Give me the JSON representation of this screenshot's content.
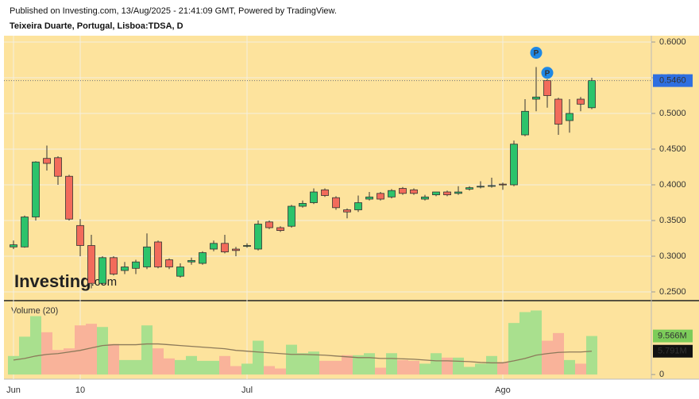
{
  "header": {
    "published": "Published on Investing.com, 13/Aug/2025 - 21:41:09 GMT, Powered by TradingView."
  },
  "chart_data": [
    {
      "type": "candlestick",
      "title": "Teixeira Duarte, Portugal, Lisboa:TDSA, D",
      "categories": [
        "Jun",
        null,
        null,
        null,
        null,
        null,
        "10",
        null,
        null,
        null,
        null,
        null,
        null,
        null,
        null,
        null,
        null,
        null,
        null,
        null,
        null,
        "Jul",
        null,
        null,
        null,
        null,
        null,
        null,
        null,
        null,
        null,
        null,
        null,
        null,
        null,
        null,
        null,
        null,
        null,
        null,
        null,
        null,
        null,
        null,
        "Ago",
        null,
        null,
        null,
        null,
        null,
        null,
        null,
        null
      ],
      "open": [
        0.313,
        0.313,
        0.355,
        0.437,
        0.438,
        0.412,
        0.343,
        0.315,
        0.262,
        0.298,
        0.28,
        0.283,
        0.285,
        0.32,
        0.295,
        0.272,
        0.292,
        0.29,
        0.31,
        0.318,
        0.31,
        0.314,
        0.31,
        0.348,
        0.34,
        0.342,
        0.37,
        0.375,
        0.393,
        0.382,
        0.365,
        0.365,
        0.38,
        0.388,
        0.383,
        0.395,
        0.393,
        0.38,
        0.386,
        0.39,
        0.388,
        0.394,
        0.397,
        0.398,
        0.401,
        0.4,
        0.47,
        0.52,
        0.546,
        0.52,
        0.49,
        0.52,
        0.508
      ],
      "high": [
        0.322,
        0.357,
        0.433,
        0.455,
        0.44,
        0.414,
        0.352,
        0.33,
        0.3,
        0.3,
        0.292,
        0.295,
        0.332,
        0.322,
        0.297,
        0.29,
        0.298,
        0.307,
        0.322,
        0.33,
        0.313,
        0.318,
        0.35,
        0.35,
        0.342,
        0.372,
        0.378,
        0.395,
        0.395,
        0.384,
        0.367,
        0.385,
        0.39,
        0.39,
        0.394,
        0.397,
        0.395,
        0.386,
        0.39,
        0.392,
        0.398,
        0.398,
        0.405,
        0.41,
        0.403,
        0.462,
        0.52,
        0.565,
        0.548,
        0.522,
        0.52,
        0.523,
        0.55
      ],
      "low": [
        0.31,
        0.312,
        0.35,
        0.42,
        0.4,
        0.35,
        0.3,
        0.255,
        0.26,
        0.273,
        0.275,
        0.275,
        0.282,
        0.283,
        0.282,
        0.27,
        0.288,
        0.288,
        0.307,
        0.304,
        0.3,
        0.312,
        0.308,
        0.338,
        0.334,
        0.34,
        0.368,
        0.373,
        0.383,
        0.365,
        0.353,
        0.362,
        0.378,
        0.378,
        0.381,
        0.386,
        0.386,
        0.378,
        0.384,
        0.384,
        0.386,
        0.392,
        0.395,
        0.396,
        0.393,
        0.398,
        0.468,
        0.503,
        0.508,
        0.47,
        0.473,
        0.503,
        0.506
      ],
      "close": [
        0.316,
        0.355,
        0.432,
        0.43,
        0.412,
        0.352,
        0.315,
        0.262,
        0.298,
        0.275,
        0.285,
        0.292,
        0.313,
        0.285,
        0.285,
        0.285,
        0.294,
        0.305,
        0.318,
        0.306,
        0.308,
        0.315,
        0.345,
        0.34,
        0.336,
        0.37,
        0.374,
        0.39,
        0.385,
        0.368,
        0.362,
        0.375,
        0.383,
        0.38,
        0.392,
        0.388,
        0.388,
        0.383,
        0.39,
        0.386,
        0.39,
        0.396,
        0.398,
        0.399,
        0.4,
        0.457,
        0.503,
        0.523,
        0.525,
        0.485,
        0.5,
        0.513,
        0.546
      ],
      "up_color": "#2cc36b",
      "down_color": "#f26b5b",
      "ylim": [
        0.2389,
        0.6089
      ],
      "yticks": [
        {
          "value": 0.25,
          "label": "0.2500"
        },
        {
          "value": 0.3,
          "label": "0.3000"
        },
        {
          "value": 0.35,
          "label": "0.3500"
        },
        {
          "value": 0.4,
          "label": "0.4000"
        },
        {
          "value": 0.45,
          "label": "0.4500"
        },
        {
          "value": 0.5,
          "label": "0.5000"
        },
        {
          "value": 0.55,
          "label": "0.5500"
        },
        {
          "value": 0.6,
          "label": "0.6000"
        }
      ],
      "grid": true,
      "last_price": {
        "value": 0.546,
        "label": "0.5460"
      },
      "event_markers": [
        "P",
        "P"
      ],
      "watermark": {
        "main": "Investing",
        "suffix": ".com"
      }
    },
    {
      "type": "bar",
      "title": "Volume (20)",
      "values": [
        4.6,
        9.4,
        14.5,
        10.5,
        6.1,
        6.5,
        12.2,
        12.6,
        11.8,
        7.6,
        3.6,
        3.6,
        12.2,
        6.5,
        4.0,
        3.6,
        4.6,
        3.4,
        3.4,
        4.6,
        2.1,
        2.7,
        8.4,
        2.1,
        1.5,
        7.4,
        5.3,
        5.7,
        3.4,
        3.4,
        4.8,
        4.8,
        5.3,
        1.7,
        5.3,
        3.6,
        3.4,
        2.7,
        5.3,
        4.2,
        4.2,
        1.9,
        2.7,
        4.6,
        3.1,
        12.8,
        15.5,
        15.9,
        8.4,
        10.3,
        3.6,
        2.7,
        9.566
      ],
      "ma": [
        3.6,
        4.0,
        4.6,
        5.0,
        5.2,
        5.6,
        6.0,
        6.6,
        7.2,
        7.4,
        7.4,
        7.4,
        7.6,
        7.6,
        7.4,
        7.2,
        7.0,
        6.8,
        6.6,
        6.4,
        6.0,
        5.8,
        5.6,
        5.4,
        5.2,
        5.0,
        5.0,
        4.9,
        4.8,
        4.6,
        4.4,
        4.2,
        4.2,
        4.0,
        4.0,
        3.9,
        3.8,
        3.6,
        3.4,
        3.4,
        3.3,
        3.2,
        3.0,
        2.9,
        2.9,
        3.4,
        4.0,
        4.8,
        5.2,
        5.5,
        5.6,
        5.6,
        5.791
      ],
      "up_color": "#a9e08e",
      "down_color": "#f9b39a",
      "ma_color": "#8c7a5a",
      "ylim": [
        -1.15,
        17.95
      ],
      "yticks": [
        0
      ],
      "last_volume": {
        "value": 9.566,
        "label": "9.566M"
      },
      "last_ma": {
        "value": 5.791,
        "label": "5.791M"
      }
    }
  ]
}
